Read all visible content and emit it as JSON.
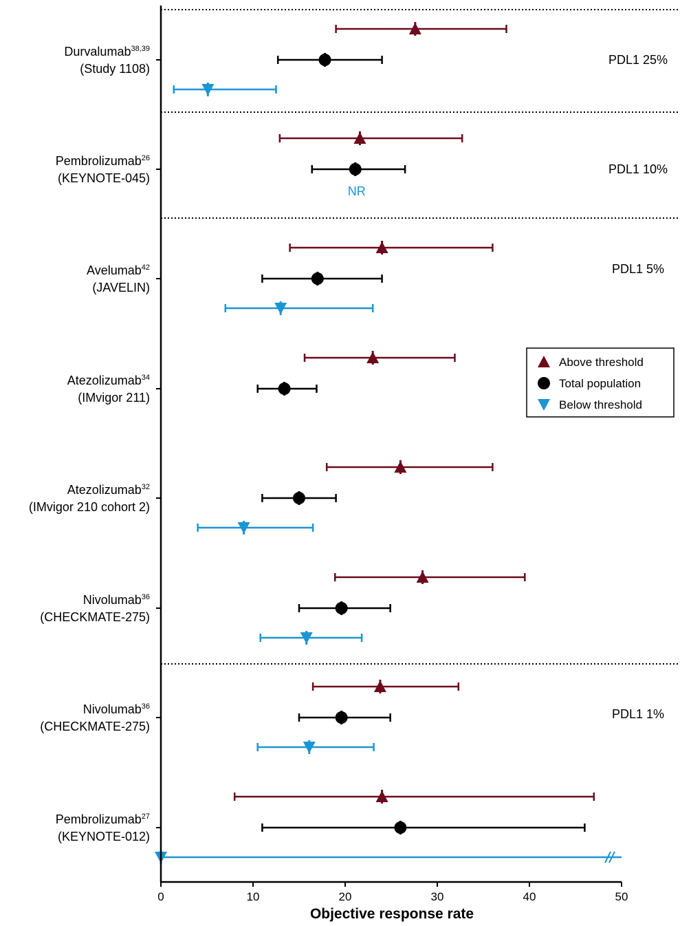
{
  "chart_data": {
    "type": "forest",
    "xlabel": "Objective response rate",
    "xlim": [
      0,
      50
    ],
    "xticks": [
      0,
      10,
      20,
      30,
      40,
      50
    ],
    "grid": false,
    "legend_placement": "right",
    "colors": {
      "above": "#6d0a1c",
      "total": "#000000",
      "below": "#1b95d4",
      "na_text": "#1b95d4"
    },
    "series": [
      {
        "key": "above",
        "name": "Above threshold",
        "marker": "triangle-up"
      },
      {
        "key": "total",
        "name": "Total population",
        "marker": "circle"
      },
      {
        "key": "below",
        "name": "Below threshold",
        "marker": "triangle-down"
      }
    ],
    "groups": [
      {
        "label": "PDL1 25%"
      },
      {
        "label": "PDL1 10%"
      },
      {
        "label": "PDL1 5%"
      },
      {
        "label": "PDL1 1%"
      }
    ],
    "studies": [
      {
        "group": 0,
        "drug": "Durvalumab",
        "ref": "38,39",
        "trial": "(Study 1108)",
        "above": {
          "est": 27.6,
          "lo": 19.0,
          "hi": 37.5
        },
        "total": {
          "est": 17.8,
          "lo": 12.7,
          "hi": 24.0
        },
        "below": {
          "est": 5.1,
          "lo": 1.4,
          "hi": 12.5
        }
      },
      {
        "group": 1,
        "drug": "Pembrolizumab",
        "ref": "26",
        "trial": "(KEYNOTE-045)",
        "above": {
          "est": 21.6,
          "lo": 12.9,
          "hi": 32.7
        },
        "total": {
          "est": 21.1,
          "lo": 16.4,
          "hi": 26.5
        },
        "below": null,
        "below_note": "NR"
      },
      {
        "group": 2,
        "drug": "Avelumab",
        "ref": "42",
        "trial": "(JAVELIN)",
        "above": {
          "est": 24.0,
          "lo": 14.0,
          "hi": 36.0
        },
        "total": {
          "est": 17.0,
          "lo": 11.0,
          "hi": 24.0
        },
        "below": {
          "est": 13.0,
          "lo": 7.0,
          "hi": 23.0
        }
      },
      {
        "group": 2,
        "drug": "Atezolizumab",
        "ref": "34",
        "trial": "(IMvigor 211)",
        "above": {
          "est": 23.0,
          "lo": 15.6,
          "hi": 31.9
        },
        "total": {
          "est": 13.4,
          "lo": 10.5,
          "hi": 16.9
        },
        "below": null
      },
      {
        "group": 2,
        "drug": "Atezolizumab",
        "ref": "32",
        "trial": "(IMvigor 210 cohort 2)",
        "above": {
          "est": 26.0,
          "lo": 18.0,
          "hi": 36.0
        },
        "total": {
          "est": 15.0,
          "lo": 11.0,
          "hi": 19.0
        },
        "below": {
          "est": 9.0,
          "lo": 4.0,
          "hi": 16.5
        }
      },
      {
        "group": 2,
        "drug": "Nivolumab",
        "ref": "36",
        "trial": "(CHECKMATE-275)",
        "above": {
          "est": 28.4,
          "lo": 18.9,
          "hi": 39.5
        },
        "total": {
          "est": 19.6,
          "lo": 15.0,
          "hi": 24.9
        },
        "below": {
          "est": 15.8,
          "lo": 10.8,
          "hi": 21.8
        }
      },
      {
        "group": 3,
        "drug": "Nivolumab",
        "ref": "36",
        "trial": "(CHECKMATE-275)",
        "above": {
          "est": 23.8,
          "lo": 16.5,
          "hi": 32.3
        },
        "total": {
          "est": 19.6,
          "lo": 15.0,
          "hi": 24.9
        },
        "below": {
          "est": 16.1,
          "lo": 10.5,
          "hi": 23.1
        }
      },
      {
        "group": 3,
        "drug": "Pembrolizumab",
        "ref": "27",
        "trial": "(KEYNOTE-012)",
        "above": {
          "est": 24.0,
          "lo": 8.0,
          "hi": 47.0
        },
        "total": {
          "est": 26.0,
          "lo": 11.0,
          "hi": 46.0
        },
        "below": {
          "est": 0.0,
          "lo": 0.0,
          "hi": 50.0,
          "axis_break": true
        }
      }
    ]
  }
}
